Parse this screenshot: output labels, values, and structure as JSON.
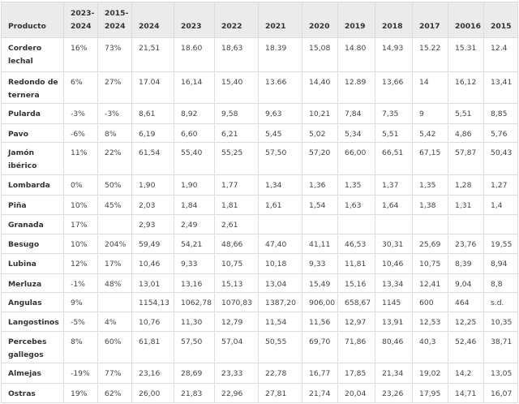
{
  "table": {
    "headers": [
      "Producto",
      "2023-2024",
      "2015-2024",
      "2024",
      "2023",
      "2022",
      "2021",
      "2020",
      "2019",
      "2018",
      "2017",
      "20016",
      "2015"
    ],
    "rows": [
      [
        "Cordero lechal",
        "16%",
        "73%",
        "21,51",
        "18.60",
        "18,63",
        "18.39",
        "15,08",
        "14.80",
        "14,93",
        "15.22",
        "15.31",
        "12.4"
      ],
      [
        "Redondo de ternera",
        "6%",
        "27%",
        "17.04",
        "16,14",
        "15,40",
        "13.66",
        "14,40",
        "12.89",
        "13,66",
        "14",
        "16,12",
        "13,41"
      ],
      [
        "Pularda",
        "-3%",
        "-3%",
        "8,61",
        "8,92",
        "9,58",
        "9,63",
        "10,21",
        "7,84",
        "7,35",
        "9",
        "5,51",
        "8,85"
      ],
      [
        "Pavo",
        "-6%",
        "8%",
        "6,19",
        "6,60",
        "6,21",
        "5,45",
        "5,02",
        "5,34",
        "5,51",
        "5,42",
        "4,86",
        "5,76"
      ],
      [
        "Jamón ibérico",
        "11%",
        "22%",
        "61,54",
        "55,40",
        "55,25",
        "57,50",
        "57,20",
        "66,00",
        "66,51",
        "67,15",
        "57,87",
        "50,43"
      ],
      [
        "Lombarda",
        "0%",
        "50%",
        "1,90",
        "1,90",
        "1,77",
        "1,34",
        "1,36",
        "1,35",
        "1,37",
        "1,35",
        "1,28",
        "1,27"
      ],
      [
        "Piña",
        "10%",
        "45%",
        "2,03",
        "1,84",
        "1,81",
        "1,61",
        "1,54",
        "1,63",
        "1,64",
        "1,38",
        "1,31",
        "1,4"
      ],
      [
        "Granada",
        "17%",
        "",
        "2,93",
        "2,49",
        "2,61",
        "",
        "",
        "",
        "",
        "",
        "",
        ""
      ],
      [
        "Besugo",
        "10%",
        "204%",
        "59,49",
        "54,21",
        "48,66",
        "47,40",
        "41,11",
        "46,53",
        "30,31",
        "25,69",
        "23,76",
        "19,55"
      ],
      [
        "Lubina",
        "12%",
        "17%",
        "10,46",
        "9,33",
        "10,75",
        "10,18",
        "9,33",
        "11,81",
        "10,46",
        "10,75",
        "8,39",
        "8,94"
      ],
      [
        "Merluza",
        "-1%",
        "48%",
        "13,01",
        "13,16",
        "15,13",
        "13,04",
        "15,49",
        "15,16",
        "13,34",
        "12,41",
        "9,04",
        "8,8"
      ],
      [
        "Angulas",
        "9%",
        "",
        "1154,13",
        "1062,78",
        "1070,83",
        "1387,20",
        "906,00",
        "658,67",
        "1145",
        "600",
        "464",
        "s.d."
      ],
      [
        "Langostinos",
        "-5%",
        "4%",
        "10,76",
        "11,30",
        "12,79",
        "11,54",
        "11,56",
        "12,97",
        "13,91",
        "12,53",
        "12,25",
        "10,35"
      ],
      [
        "Percebes gallegos",
        "8%",
        "60%",
        "61,81",
        "57,50",
        "57,04",
        "50,55",
        "69,70",
        "71,86",
        "80,46",
        "40,3",
        "52,46",
        "38,71"
      ],
      [
        "Almejas",
        "-19%",
        "77%",
        "23,16",
        "28,69",
        "23,33",
        "22,78",
        "16,77",
        "17,85",
        "21,34",
        "19,02",
        "14,2",
        "13,05"
      ],
      [
        "Ostras",
        "19%",
        "62%",
        "26,00",
        "21,83",
        "22,96",
        "27,81",
        "21,74",
        "20,04",
        "23,26",
        "17,95",
        "14,71",
        "16,07"
      ]
    ]
  }
}
